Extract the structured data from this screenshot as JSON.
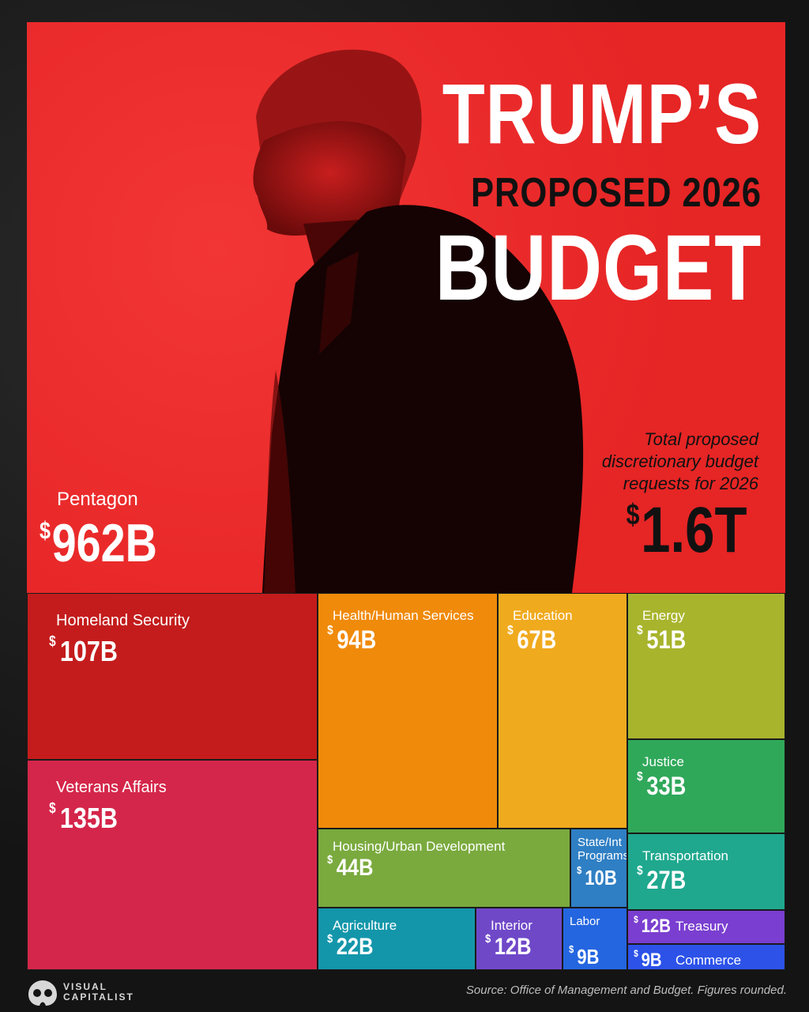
{
  "title": {
    "line1": "TRUMP’S",
    "line2": "PROPOSED 2026",
    "line3": "BUDGET"
  },
  "total": {
    "caption": "Total proposed discretionary budget requests for 2026",
    "currency": "$",
    "value": "1.6T"
  },
  "source": "Source: Office of Management and Budget. Figures rounded.",
  "brand": {
    "line1": "VISUAL",
    "line2": "CAPITALIST"
  },
  "colors": {
    "hero_red": "#ee2a2a",
    "background": "#141414"
  },
  "chart_data": {
    "type": "treemap",
    "unit": "B",
    "currency": "$",
    "items": [
      {
        "name": "Pentagon",
        "value": 962,
        "label": "962B",
        "color": "#ee2a2a"
      },
      {
        "name": "Homeland Security",
        "value": 107,
        "label": "107B",
        "color": "#c41c1c"
      },
      {
        "name": "Veterans Affairs",
        "value": 135,
        "label": "135B",
        "color": "#d4264a"
      },
      {
        "name": "Health/Human Services",
        "value": 94,
        "label": "94B",
        "color": "#f08a0a"
      },
      {
        "name": "Education",
        "value": 67,
        "label": "67B",
        "color": "#f0aa1e"
      },
      {
        "name": "Energy",
        "value": 51,
        "label": "51B",
        "color": "#a8b42c"
      },
      {
        "name": "Justice",
        "value": 33,
        "label": "33B",
        "color": "#2fa85a"
      },
      {
        "name": "Housing/Urban Development",
        "value": 44,
        "label": "44B",
        "color": "#7aaa3e"
      },
      {
        "name": "State/Int Programs",
        "value": 10,
        "label": "10B",
        "color": "#2f7fc4"
      },
      {
        "name": "Transportation",
        "value": 27,
        "label": "27B",
        "color": "#1fa88e"
      },
      {
        "name": "Agriculture",
        "value": 22,
        "label": "22B",
        "color": "#1496aa"
      },
      {
        "name": "Interior",
        "value": 12,
        "label": "12B",
        "color": "#6f48c8"
      },
      {
        "name": "Labor",
        "value": 9,
        "label": "9B",
        "color": "#2466e0"
      },
      {
        "name": "Treasury",
        "value": 12,
        "label": "12B",
        "color": "#7a3ed0"
      },
      {
        "name": "Commerce",
        "value": 9,
        "label": "9B",
        "color": "#2c52e8"
      }
    ]
  }
}
